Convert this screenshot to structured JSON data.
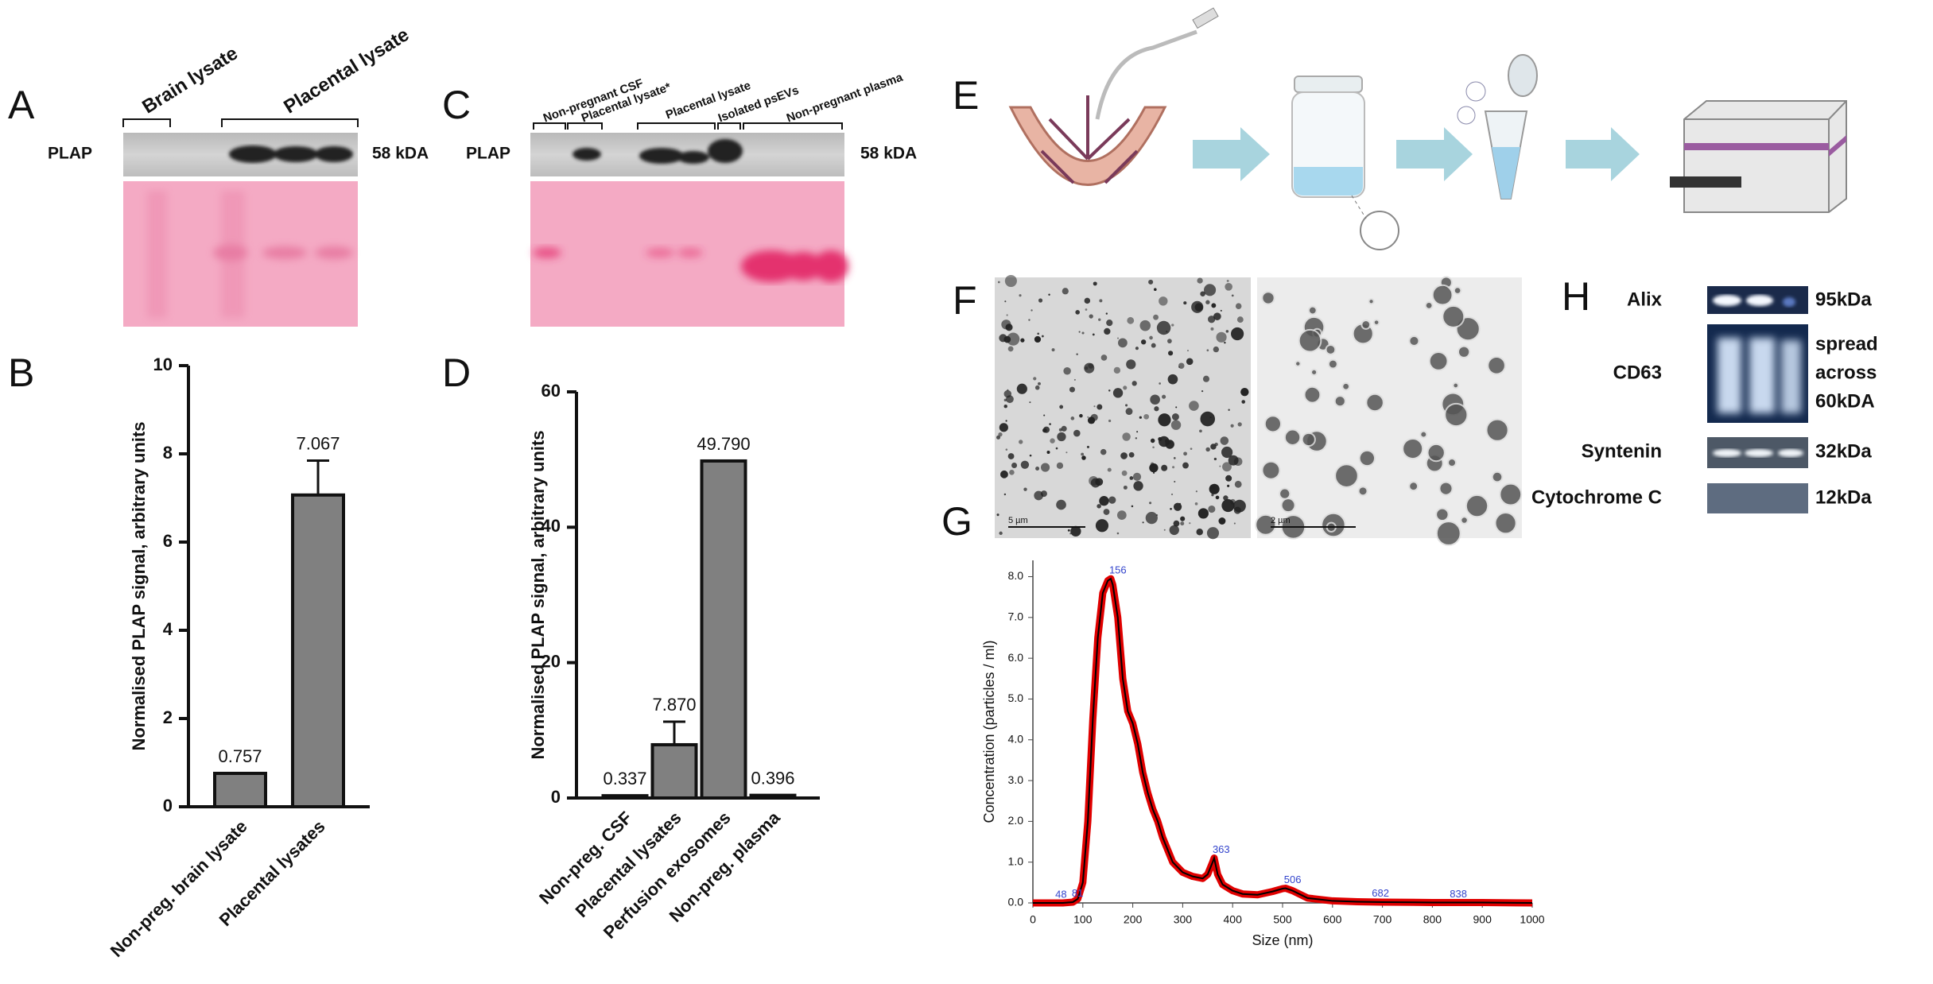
{
  "panel_labels": {
    "a": "A",
    "b": "B",
    "c": "C",
    "d": "D",
    "e": "E",
    "f": "F",
    "g": "G",
    "h": "H"
  },
  "blot_a": {
    "protein": "PLAP",
    "size": "58 kDA",
    "groups": [
      "Brain lysate",
      "Placental lysate"
    ]
  },
  "blot_c": {
    "protein": "PLAP",
    "size": "58 kDA",
    "groups": [
      "Non-pregnant CSF",
      "Placental lysate*",
      "Placental lysate",
      "Isolated psEVs",
      "Non-pregnant plasma"
    ]
  },
  "tem": {
    "scale_bars": [
      "5 µm",
      "2 µm"
    ]
  },
  "blot_h": {
    "rows": [
      {
        "label": "Alix",
        "size": [
          "95kDa"
        ]
      },
      {
        "label": "CD63",
        "size": [
          "spread",
          "across",
          "60kDA"
        ]
      },
      {
        "label": "Syntenin",
        "size": [
          "32kDa"
        ]
      },
      {
        "label": "Cytochrome C",
        "size": [
          "12kDa"
        ]
      }
    ]
  },
  "chart_data": [
    {
      "type": "bar",
      "y_label": "Normalised PLAP signal, arbitrary units",
      "categories": [
        "Non-preg. brain lysate",
        "Placental lysates"
      ],
      "values": [
        0.757,
        7.067
      ],
      "errors": [
        null,
        0.78
      ],
      "color": "#808080",
      "ylim": [
        0,
        10
      ],
      "yticks": [
        0,
        2,
        4,
        6,
        8,
        10
      ]
    },
    {
      "type": "bar",
      "y_label": "Normalised PLAP signal, arbitrary units",
      "categories": [
        "Non-preg. CSF",
        "Placental lysates",
        "Perfusion exosomes",
        "Non-preg. plasma"
      ],
      "values": [
        0.337,
        7.87,
        49.79,
        0.396
      ],
      "value_labels": [
        "0.337",
        "7.870",
        "49.790",
        "0.396"
      ],
      "errors": [
        null,
        3.4,
        null,
        null
      ],
      "color": "#808080",
      "ylim": [
        0,
        60
      ],
      "yticks": [
        0,
        20,
        40,
        60
      ]
    },
    {
      "type": "line",
      "x_label": "Size (nm)",
      "y_label": "Concentration (particles / ml)",
      "x": [
        0,
        40,
        60,
        80,
        90,
        100,
        110,
        120,
        130,
        140,
        150,
        156,
        160,
        170,
        180,
        190,
        200,
        210,
        220,
        230,
        240,
        250,
        260,
        280,
        300,
        320,
        340,
        350,
        360,
        363,
        370,
        380,
        400,
        420,
        450,
        480,
        500,
        506,
        520,
        550,
        600,
        650,
        700,
        800,
        900,
        1000
      ],
      "values": [
        0,
        0,
        0,
        0.02,
        0.1,
        0.5,
        2.0,
        4.5,
        6.5,
        7.6,
        7.9,
        7.95,
        7.8,
        7.0,
        5.5,
        4.7,
        4.4,
        3.9,
        3.2,
        2.7,
        2.3,
        2.0,
        1.6,
        1.0,
        0.75,
        0.65,
        0.6,
        0.7,
        1.0,
        1.1,
        0.7,
        0.45,
        0.3,
        0.22,
        0.2,
        0.28,
        0.35,
        0.36,
        0.3,
        0.12,
        0.05,
        0.03,
        0.02,
        0.01,
        0.01,
        0.0
      ],
      "color": "#000000",
      "band_color": "#e00000",
      "peak_color": "#3344cc",
      "peaks": [
        48,
        81,
        156,
        363,
        506,
        682,
        838
      ],
      "xlim": [
        0,
        1000
      ],
      "xticks": [
        0,
        100,
        200,
        300,
        400,
        500,
        600,
        700,
        800,
        900,
        1000
      ],
      "ylim": [
        0,
        8.4
      ],
      "yticks": [
        {
          "value": 0,
          "label": "0.0"
        },
        {
          "value": 1,
          "label": "1.0"
        },
        {
          "value": 2,
          "label": "2.0"
        },
        {
          "value": 3,
          "label": "3.0"
        },
        {
          "value": 4,
          "label": "4.0"
        },
        {
          "value": 5,
          "label": "5.0"
        },
        {
          "value": 6,
          "label": "6.0"
        },
        {
          "value": 7,
          "label": "7.0"
        },
        {
          "value": 8,
          "label": "8.0"
        }
      ]
    }
  ]
}
